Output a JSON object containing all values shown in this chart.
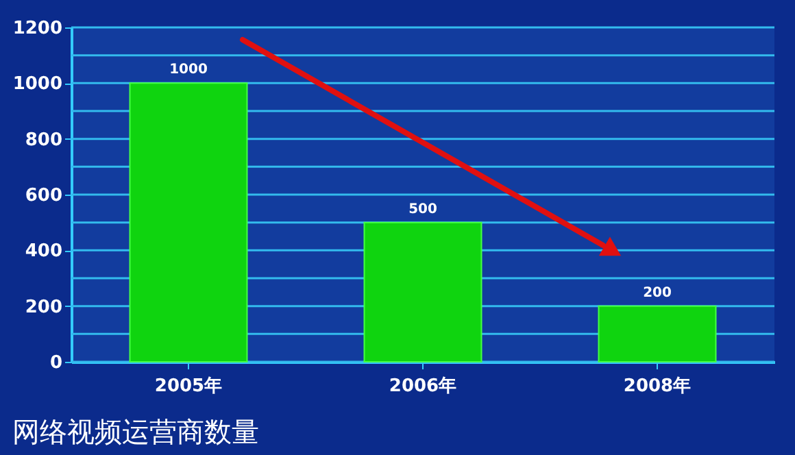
{
  "chart_data": {
    "type": "bar",
    "title": "网络视频运营商数量",
    "categories": [
      "2005年",
      "2006年",
      "2008年"
    ],
    "values": [
      1000,
      500,
      200
    ],
    "color": "#0fd40f",
    "data_labels": true,
    "ylim": [
      0,
      1200
    ],
    "yticks": [
      0,
      {
        "value": 100,
        "label": null
      },
      200,
      {
        "value": 300,
        "label": null
      },
      400,
      {
        "value": 500,
        "label": null
      },
      600,
      {
        "value": 700,
        "label": null
      },
      800,
      {
        "value": 900,
        "label": null
      },
      1000,
      {
        "value": 1100,
        "label": null
      },
      1200
    ],
    "grid": "y"
  }
}
